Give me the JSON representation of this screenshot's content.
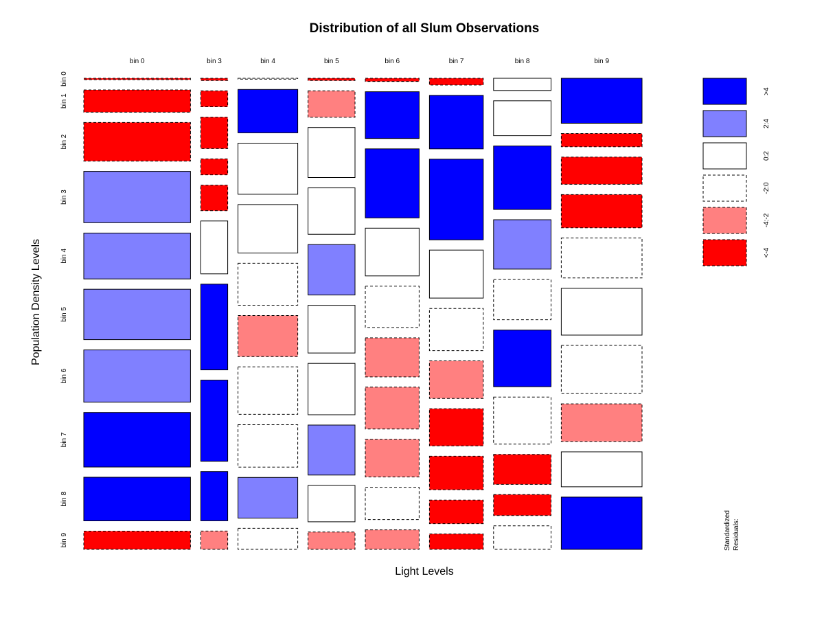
{
  "chart_data": {
    "type": "mosaic",
    "title": "Distribution of all Slum Observations",
    "xlabel": "Light Levels",
    "ylabel": "Population Density Levels",
    "columns": [
      "bin 0",
      "bin 3",
      "bin 4",
      "bin 5",
      "bin 6",
      "bin 7",
      "bin 8",
      "bin 9"
    ],
    "row_labels": [
      "bin 0",
      "bin 1",
      "bin 2",
      "bin 3",
      "bin 4",
      "bin 5",
      "bin 6",
      "bin 7",
      "bin 8",
      "bin 9"
    ],
    "column_proportions": [
      0.234,
      0.059,
      0.131,
      0.103,
      0.118,
      0.118,
      0.126,
      0.177
    ],
    "cells": [
      {
        "column": "bin 0",
        "rows": [
          "bin 0",
          "bin 1",
          "bin 2",
          "bin 3",
          "bin 4",
          "bin 5",
          "bin 6",
          "bin 7",
          "bin 8",
          "bin 9"
        ],
        "shares": [
          0.003,
          0.049,
          0.085,
          0.113,
          0.101,
          0.111,
          0.115,
          0.12,
          0.096,
          0.04
        ],
        "classes": [
          "<-4",
          "<-4",
          "<-4",
          "2:4",
          "2:4",
          "2:4",
          "2:4",
          ">4",
          ">4",
          "<-4"
        ]
      },
      {
        "column": "bin 3",
        "rows": [
          "bin 0",
          "bin 1",
          "bin 2",
          "bin 3",
          "bin 4",
          "bin 5",
          "bin 6",
          "bin 7",
          "bin 8",
          "bin 9"
        ],
        "shares": [
          0.005,
          0.035,
          0.069,
          0.035,
          0.056,
          0.116,
          0.188,
          0.178,
          0.108,
          0.04
        ],
        "classes": [
          "<-4",
          "<-4",
          "<-4",
          "<-4",
          "<-4",
          "0:2",
          ">4",
          ">4",
          ">4",
          "-4:-2"
        ]
      },
      {
        "column": "bin 4",
        "rows": [
          "bin 0",
          "bin 1",
          "bin 2",
          "bin 3",
          "bin 4",
          "bin 5",
          "bin 6",
          "bin 7",
          "bin 8",
          "bin 9"
        ],
        "shares": [
          0.002,
          0.095,
          0.112,
          0.106,
          0.092,
          0.09,
          0.104,
          0.093,
          0.089,
          0.046
        ],
        "classes": [
          "-2:0",
          ">4",
          "0:2",
          "0:2",
          "-2:0",
          "-4:-2",
          "-2:0",
          "-2:0",
          "2:4",
          "-2:0"
        ]
      },
      {
        "column": "bin 5",
        "rows": [
          "bin 0",
          "bin 1",
          "bin 2",
          "bin 3",
          "bin 4",
          "bin 5",
          "bin 6",
          "bin 7",
          "bin 8",
          "bin 9"
        ],
        "shares": [
          0.005,
          0.058,
          0.11,
          0.102,
          0.111,
          0.105,
          0.113,
          0.11,
          0.08,
          0.038
        ],
        "classes": [
          "<-4",
          "-4:-2",
          "0:2",
          "0:2",
          "2:4",
          "0:2",
          "0:2",
          "2:4",
          "0:2",
          "-4:-2"
        ]
      },
      {
        "column": "bin 6",
        "rows": [
          "bin 0",
          "bin 1",
          "bin 2",
          "bin 3",
          "bin 4",
          "bin 5",
          "bin 6",
          "bin 7",
          "bin 8",
          "bin 9"
        ],
        "shares": [
          0.007,
          0.103,
          0.152,
          0.105,
          0.091,
          0.086,
          0.092,
          0.083,
          0.071,
          0.043
        ],
        "classes": [
          "<-4",
          ">4",
          ">4",
          "0:2",
          "-2:0",
          "-4:-2",
          "-4:-2",
          "-4:-2",
          "-2:0",
          "-4:-2"
        ]
      },
      {
        "column": "bin 7",
        "rows": [
          "bin 0",
          "bin 1",
          "bin 2",
          "bin 3",
          "bin 4",
          "bin 5",
          "bin 6",
          "bin 7",
          "bin 8",
          "bin 9"
        ],
        "shares": [
          0.015,
          0.118,
          0.178,
          0.106,
          0.093,
          0.083,
          0.082,
          0.074,
          0.052,
          0.034
        ],
        "classes": [
          "<-4",
          ">4",
          ">4",
          "0:2",
          "-2:0",
          "-4:-2",
          "<-4",
          "<-4",
          "<-4",
          "<-4"
        ]
      },
      {
        "column": "bin 8",
        "rows": [
          "bin 0",
          "bin 1",
          "bin 2",
          "bin 3",
          "bin 4",
          "bin 5",
          "bin 6",
          "bin 7",
          "bin 8",
          "bin 9"
        ],
        "shares": [
          0.027,
          0.077,
          0.14,
          0.109,
          0.089,
          0.125,
          0.104,
          0.066,
          0.046,
          0.052
        ],
        "classes": [
          "0:2",
          "0:2",
          ">4",
          "2:4",
          "-2:0",
          ">4",
          "-2:0",
          "<-4",
          "<-4",
          "-2:0"
        ]
      },
      {
        "column": "bin 9",
        "rows": [
          "bin 0",
          "bin 1",
          "bin 2",
          "bin 3",
          "bin 4",
          "bin 5",
          "bin 6",
          "bin 7",
          "bin 8",
          "bin 9"
        ],
        "shares": [
          0.099,
          0.029,
          0.06,
          0.073,
          0.088,
          0.103,
          0.106,
          0.083,
          0.077,
          0.115
        ],
        "classes": [
          ">4",
          "<-4",
          "<-4",
          "<-4",
          "-2:0",
          "0:2",
          "-2:0",
          "-4:-2",
          "0:2",
          ">4"
        ]
      }
    ],
    "legend": {
      "title": "Standardized Residuals:",
      "placement": "right",
      "entries": [
        {
          "label": ">4",
          "fill": "#0000ff",
          "dashed": false
        },
        {
          "label": "2:4",
          "fill": "#8080ff",
          "dashed": false
        },
        {
          "label": "0:2",
          "fill": "#ffffff",
          "dashed": false
        },
        {
          "label": "-2:0",
          "fill": "#ffffff",
          "dashed": true
        },
        {
          "label": "-4:-2",
          "fill": "#ff8080",
          "dashed": true
        },
        {
          "label": "<-4",
          "fill": "#ff0000",
          "dashed": true
        }
      ]
    }
  }
}
